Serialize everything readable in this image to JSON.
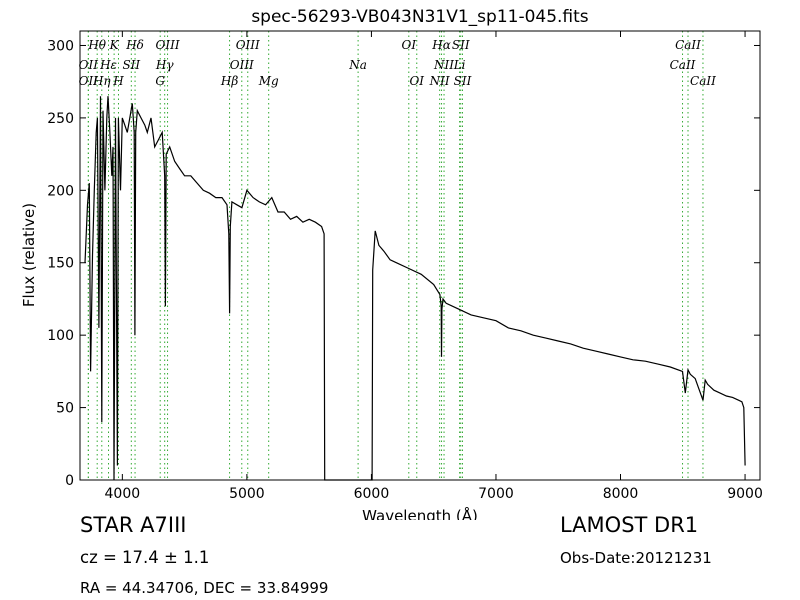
{
  "chart_data": {
    "type": "line",
    "title": "spec-56293-VB043N31V1_sp11-045.fits",
    "xlabel": "Wavelength (Å)",
    "ylabel": "Flux (relative)",
    "xlim": [
      3660,
      9120
    ],
    "ylim": [
      0,
      310
    ],
    "xticks": [
      4000,
      5000,
      6000,
      7000,
      8000,
      9000
    ],
    "yticks": [
      0,
      50,
      100,
      150,
      200,
      250,
      300
    ],
    "grid": false,
    "line_color": "#000000",
    "marker_color": "#33aa33",
    "series": [
      {
        "x": [
          3700,
          3720,
          3735,
          3745,
          3760,
          3775,
          3790,
          3800,
          3812,
          3825,
          3835,
          3845,
          3860,
          3875,
          3885,
          3900,
          3915,
          3925,
          3933,
          3945,
          3960,
          3968,
          3985,
          4000,
          4020,
          4040,
          4060,
          4080,
          4095,
          4101,
          4107,
          4120,
          4150,
          4180,
          4200,
          4230,
          4260,
          4290,
          4320,
          4340,
          4346,
          4352,
          4380,
          4420,
          4460,
          4500,
          4550,
          4600,
          4650,
          4700,
          4750,
          4800,
          4840,
          4855,
          4861,
          4867,
          4880,
          4920,
          4960,
          5000,
          5050,
          5100,
          5150,
          5200,
          5250,
          5300,
          5350,
          5400,
          5450,
          5500,
          5550,
          5600,
          5620,
          5625,
          5700,
          5800,
          5900,
          5990,
          6005,
          6010,
          6030,
          6060,
          6100,
          6150,
          6200,
          6300,
          6400,
          6500,
          6550,
          6560,
          6563,
          6566,
          6575,
          6600,
          6700,
          6800,
          6900,
          7000,
          7100,
          7200,
          7300,
          7400,
          7500,
          7600,
          7700,
          7800,
          7900,
          8000,
          8100,
          8200,
          8300,
          8400,
          8498,
          8520,
          8542,
          8560,
          8600,
          8662,
          8680,
          8700,
          8750,
          8800,
          8850,
          8900,
          8950,
          8975,
          8990,
          9000
        ],
        "y": [
          150,
          190,
          205,
          75,
          155,
          200,
          240,
          250,
          105,
          265,
          40,
          255,
          200,
          250,
          265,
          240,
          210,
          230,
          0,
          250,
          10,
          250,
          200,
          250,
          245,
          240,
          250,
          260,
          240,
          100,
          240,
          255,
          250,
          245,
          240,
          250,
          230,
          235,
          240,
          210,
          120,
          225,
          230,
          220,
          215,
          210,
          210,
          205,
          200,
          198,
          195,
          195,
          190,
          170,
          115,
          175,
          192,
          190,
          188,
          200,
          195,
          192,
          190,
          195,
          185,
          185,
          180,
          182,
          178,
          180,
          178,
          175,
          170,
          0,
          0,
          0,
          0,
          0,
          0,
          145,
          172,
          162,
          158,
          152,
          150,
          146,
          142,
          135,
          128,
          120,
          85,
          118,
          125,
          122,
          118,
          114,
          112,
          110,
          105,
          103,
          100,
          98,
          96,
          94,
          91,
          89,
          87,
          85,
          83,
          82,
          80,
          78,
          75,
          60,
          76,
          73,
          70,
          55,
          69,
          66,
          62,
          60,
          58,
          57,
          55,
          54,
          50,
          10
        ]
      }
    ],
    "lines": [
      {
        "name": "Hθ",
        "x": 3798,
        "row": 1
      },
      {
        "name": "OII",
        "x": 3727,
        "row": 2
      },
      {
        "name": "OII",
        "x": 3727,
        "row": 3
      },
      {
        "name": "Hη",
        "x": 3835,
        "row": 3
      },
      {
        "name": "K",
        "x": 3934,
        "row": 1
      },
      {
        "name": "Hε",
        "x": 3889,
        "row": 2
      },
      {
        "name": "SII",
        "x": 4072,
        "row": 2
      },
      {
        "name": "H",
        "x": 3969,
        "row": 3
      },
      {
        "name": "Hδ",
        "x": 4102,
        "row": 1
      },
      {
        "name": "OIII",
        "x": 4363,
        "row": 1
      },
      {
        "name": "Hγ",
        "x": 4340,
        "row": 2
      },
      {
        "name": "G",
        "x": 4304,
        "row": 3
      },
      {
        "name": "OIII",
        "x": 5007,
        "row": 1
      },
      {
        "name": "OIII",
        "x": 4959,
        "row": 2
      },
      {
        "name": "Hβ",
        "x": 4861,
        "row": 3
      },
      {
        "name": "Mg",
        "x": 5175,
        "row": 3
      },
      {
        "name": "Na",
        "x": 5893,
        "row": 2
      },
      {
        "name": "OI",
        "x": 6300,
        "row": 1
      },
      {
        "name": "OI",
        "x": 6364,
        "row": 3
      },
      {
        "name": "Hα",
        "x": 6563,
        "row": 1
      },
      {
        "name": "SII",
        "x": 6717,
        "row": 1
      },
      {
        "name": "NII",
        "x": 6583,
        "row": 2
      },
      {
        "name": "Li",
        "x": 6708,
        "row": 2
      },
      {
        "name": "NII",
        "x": 6548,
        "row": 3
      },
      {
        "name": "SII",
        "x": 6731,
        "row": 3
      },
      {
        "name": "CaII",
        "x": 8542,
        "row": 1
      },
      {
        "name": "CaII",
        "x": 8498,
        "row": 2
      },
      {
        "name": "CaII",
        "x": 8662,
        "row": 3
      }
    ]
  },
  "info": {
    "object": "STAR   A7III",
    "redshift": "cz = 17.4  ± 1.1",
    "coords": "RA = 44.34706, DEC = 33.84999",
    "survey": "LAMOST DR1",
    "obs_date": "Obs-Date:20121231"
  }
}
